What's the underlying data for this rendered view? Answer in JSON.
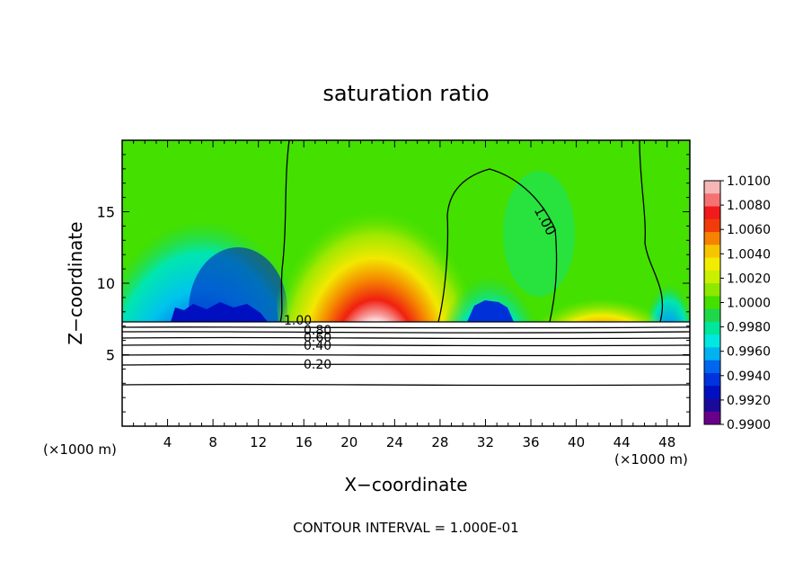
{
  "chart_data": {
    "type": "heatmap",
    "title": "saturation ratio",
    "xlabel": "X−coordinate",
    "ylabel": "Z−coordinate",
    "x_unit": "(×1000 m)",
    "z_unit": "(×1000 m)",
    "xlim": [
      0,
      50
    ],
    "ylim": [
      0,
      20
    ],
    "x_ticks": [
      4,
      8,
      12,
      16,
      20,
      24,
      28,
      32,
      36,
      40,
      44,
      48
    ],
    "y_ticks": [
      5,
      10,
      15
    ],
    "colorbar": {
      "levels": [
        "1.0100",
        "1.0080",
        "1.0060",
        "1.0040",
        "1.0020",
        "1.0000",
        "0.9980",
        "0.9960",
        "0.9940",
        "0.9920",
        "0.9900"
      ],
      "colors": [
        "#f7b6b6",
        "#f57272",
        "#f21a1a",
        "#f03c0a",
        "#f58200",
        "#f7c500",
        "#f2ed00",
        "#c8f000",
        "#8ee800",
        "#44e000",
        "#1fd84a",
        "#00e69b",
        "#00e8e0",
        "#00b2f0",
        "#0066ee",
        "#0033dd",
        "#0010c0",
        "#1a0a9a",
        "#6a008a"
      ]
    },
    "contour_labels": [
      "1.00",
      "1.00",
      "0.80",
      "0.60",
      "0.40",
      "0.20"
    ],
    "contour_interval_text": "CONTOUR INTERVAL = 1.000E-01"
  }
}
